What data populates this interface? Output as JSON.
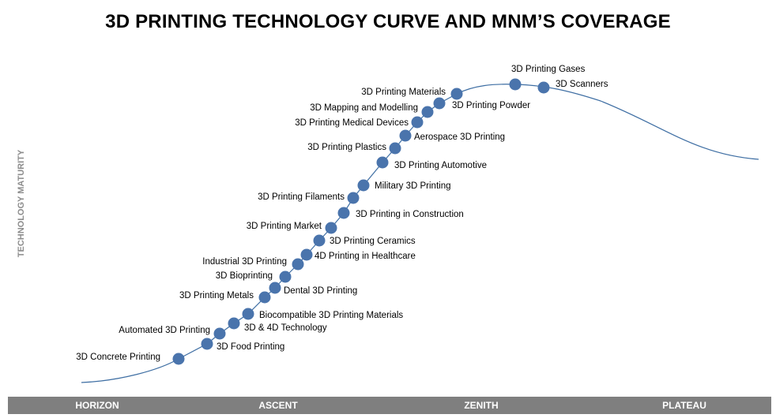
{
  "title": "3D PRINTING TECHNOLOGY CURVE AND MNM’S COVERAGE",
  "y_axis_label": "TECHNOLOGY MATURITY",
  "phases": [
    "HORIZON",
    "ASCENT",
    "ZENITH",
    "PLATEAU"
  ],
  "colors": {
    "curve": "#3e6ea3",
    "marker": "#4a74ac",
    "bar": "#7f7f7f"
  },
  "technologies": [
    "3D Concrete Printing",
    "3D Food Printing",
    "Automated 3D Printing",
    "3D & 4D Technology",
    "Biocompatible 3D Printing Materials",
    "3D Printing Metals",
    "Dental 3D Printing",
    "3D Bioprinting",
    "Industrial 3D Printing",
    "4D Printing in Healthcare",
    "3D Printing Ceramics",
    "3D Printing Market",
    "3D Printing in Construction",
    "3D Printing Filaments",
    "Military 3D Printing",
    "3D Printing Automotive",
    "3D Printing Plastics",
    "Aerospace 3D Printing",
    "3D Printing Medical Devices",
    "3D Mapping and Modelling",
    "3D Printing Materials",
    "3D Printing Powder",
    "3D Printing Gases",
    "3D Scanners"
  ]
}
